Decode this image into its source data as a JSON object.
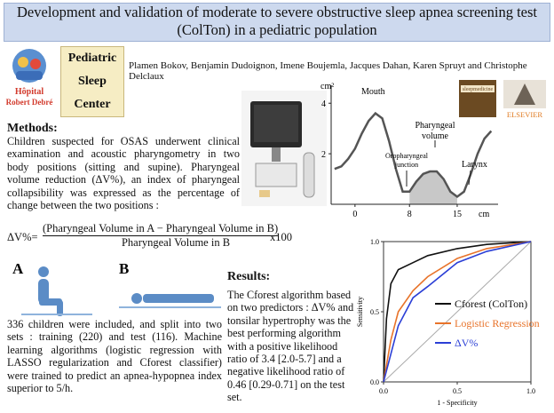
{
  "header": {
    "title": "Development and validation of moderate to severe obstructive sleep apnea screening test (ColTon) in a pediatric population",
    "logo": [
      "Hôpital",
      "Robert Debré"
    ],
    "center": [
      "Pediatric",
      "Sleep",
      "Center"
    ],
    "authors": "Plamen Bokov, Benjamin Dudoignon, Imene Boujemla, Jacques Dahan, Karen Spruyt and Christophe Delclaux",
    "journal": "sleepmedicine",
    "publisher": "ELSEVIER"
  },
  "methods": {
    "heading": "Methods:",
    "text": "Children suspected for OSAS underwent clinical examination and acoustic pharyngometry in two body positions (sitting and supine). Pharyngeal volume reduction (ΔV%), an index of pharyngeal collapsibility was expressed as the percentage of change between the two positions :",
    "cohort": "336 children were included, and split into two sets : training (220) and test (116). Machine learning algorithms (logistic regression with LASSO regularization and Cforest classifier) were trained to predict an apnea-hypopnea index superior to 5/h."
  },
  "formula": {
    "lhs": "ΔV%=",
    "numerator": "(Pharyngeal Volume in A − Pharyngeal Volume in B)",
    "denominator": "Pharyngeal Volume in B",
    "factor": "x100"
  },
  "figure": {
    "labels": [
      "A",
      "B"
    ]
  },
  "results": {
    "heading": "Results:",
    "text": "The Cforest algorithm based on two predictors : ΔV% and tonsilar hypertrophy was the best performing algorithm with a positive likelihood ratio of 3.4 [2.0-5.7] and a negative likelihood ratio of 0.46 [0.29-0.71] on the test set."
  },
  "area_chart": {
    "type": "line",
    "y_label": "cm²",
    "x_label": "cm",
    "color": "#555555",
    "annotations": [
      "Mouth",
      "Pharyngeal volume",
      "Oropharyngeal junction",
      "Larynx"
    ],
    "x": [
      -3,
      -2,
      -1,
      0,
      1,
      2,
      3,
      4,
      5,
      6,
      7,
      8,
      9,
      10,
      11,
      12,
      13,
      14,
      15,
      16,
      17,
      18,
      19,
      20
    ],
    "values": [
      1.4,
      1.5,
      1.8,
      2.2,
      2.8,
      3.3,
      3.6,
      3.4,
      2.5,
      1.4,
      0.5,
      0.5,
      0.9,
      1.2,
      1.3,
      1.3,
      1.0,
      0.5,
      0.3,
      0.5,
      1.2,
      2.0,
      2.6,
      2.9
    ],
    "xlim": [
      -3.5,
      21
    ],
    "ylim": [
      0,
      4.5
    ],
    "xticks": [
      0,
      8,
      15
    ],
    "yticks": [
      2,
      4
    ],
    "shade": [
      8,
      15
    ]
  },
  "roc_chart": {
    "type": "line",
    "x_label": "1 - Specificity",
    "y_label": "Sensitivity",
    "xlim": [
      0,
      1
    ],
    "ylim": [
      0,
      1
    ],
    "xticks": [
      {
        "value": 0,
        "label": "0.0"
      },
      {
        "value": 0.5,
        "label": "0.5"
      },
      {
        "value": 1,
        "label": "1.0"
      }
    ],
    "yticks": [
      {
        "value": 0,
        "label": "0.0"
      },
      {
        "value": 0.5,
        "label": "0.5"
      },
      {
        "value": 1,
        "label": "1.0"
      }
    ],
    "series": [
      {
        "name": "Cforest (ColTon)",
        "color": "#111111",
        "x": [
          0,
          0.02,
          0.05,
          0.1,
          0.2,
          0.3,
          0.5,
          0.7,
          1
        ],
        "values": [
          0,
          0.45,
          0.7,
          0.8,
          0.85,
          0.9,
          0.95,
          0.98,
          1
        ]
      },
      {
        "name": "Logistic Regression",
        "color": "#e8732a",
        "x": [
          0,
          0.05,
          0.1,
          0.2,
          0.3,
          0.5,
          0.7,
          1
        ],
        "values": [
          0,
          0.3,
          0.5,
          0.65,
          0.75,
          0.88,
          0.95,
          1
        ]
      },
      {
        "name": "ΔV%",
        "color": "#2b3fd6",
        "x": [
          0,
          0.05,
          0.1,
          0.2,
          0.3,
          0.5,
          0.7,
          1
        ],
        "values": [
          0,
          0.2,
          0.4,
          0.6,
          0.68,
          0.85,
          0.93,
          1
        ]
      }
    ]
  }
}
